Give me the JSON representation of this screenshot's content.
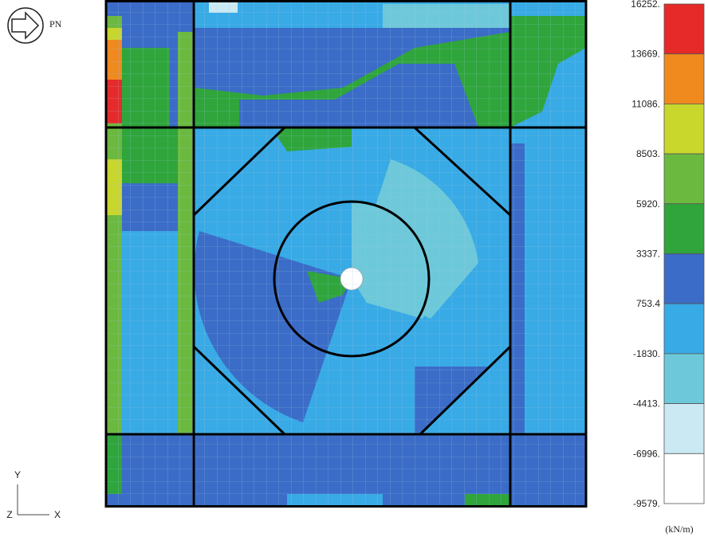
{
  "header": {
    "direction": "PN"
  },
  "axes": {
    "y": "Y",
    "z": "Z",
    "x": "X"
  },
  "legend": {
    "levels": [
      "16252.",
      "13669.",
      "11086.",
      "8503.",
      "5920.",
      "3337.",
      "753.4",
      "-1830.",
      "-4413.",
      "-6996.",
      "-9579."
    ],
    "colors": [
      "#e62a2a",
      "#f0891e",
      "#c9d62b",
      "#6cb93f",
      "#2fa53b",
      "#3b6cc7",
      "#38aae6",
      "#6dc9d9",
      "#cbe9f3",
      "#ffffff"
    ],
    "unit": "(kN/m)"
  }
}
